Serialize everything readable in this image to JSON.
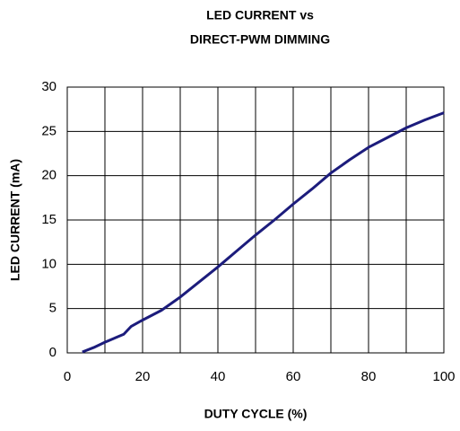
{
  "chart_data": {
    "type": "line",
    "title": [
      "LED CURRENT vs",
      "DIRECT-PWM DIMMING"
    ],
    "xlabel": "DUTY CYCLE (%)",
    "ylabel": "LED CURRENT (mA)",
    "x": [
      4,
      7,
      10,
      15,
      17,
      20,
      25,
      30,
      35,
      40,
      45,
      50,
      55,
      60,
      65,
      70,
      75,
      80,
      85,
      90,
      95,
      100
    ],
    "series": [
      {
        "name": "LED CURRENT",
        "color": "#1c1c7c",
        "values": [
          0.1,
          0.6,
          1.2,
          2.1,
          3.0,
          3.7,
          4.8,
          6.3,
          8.0,
          9.7,
          11.5,
          13.3,
          15.0,
          16.8,
          18.5,
          20.3,
          21.8,
          23.2,
          24.3,
          25.4,
          26.3,
          27.1
        ]
      }
    ],
    "xlim": [
      0,
      100
    ],
    "xticks": [
      0,
      20,
      40,
      60,
      80,
      100
    ],
    "ylim": [
      0,
      30
    ],
    "yticks": [
      0,
      5,
      10,
      15,
      20,
      25,
      30
    ],
    "xgrid": [
      0,
      10,
      20,
      30,
      40,
      50,
      60,
      70,
      80,
      90,
      100
    ],
    "grid": true
  }
}
